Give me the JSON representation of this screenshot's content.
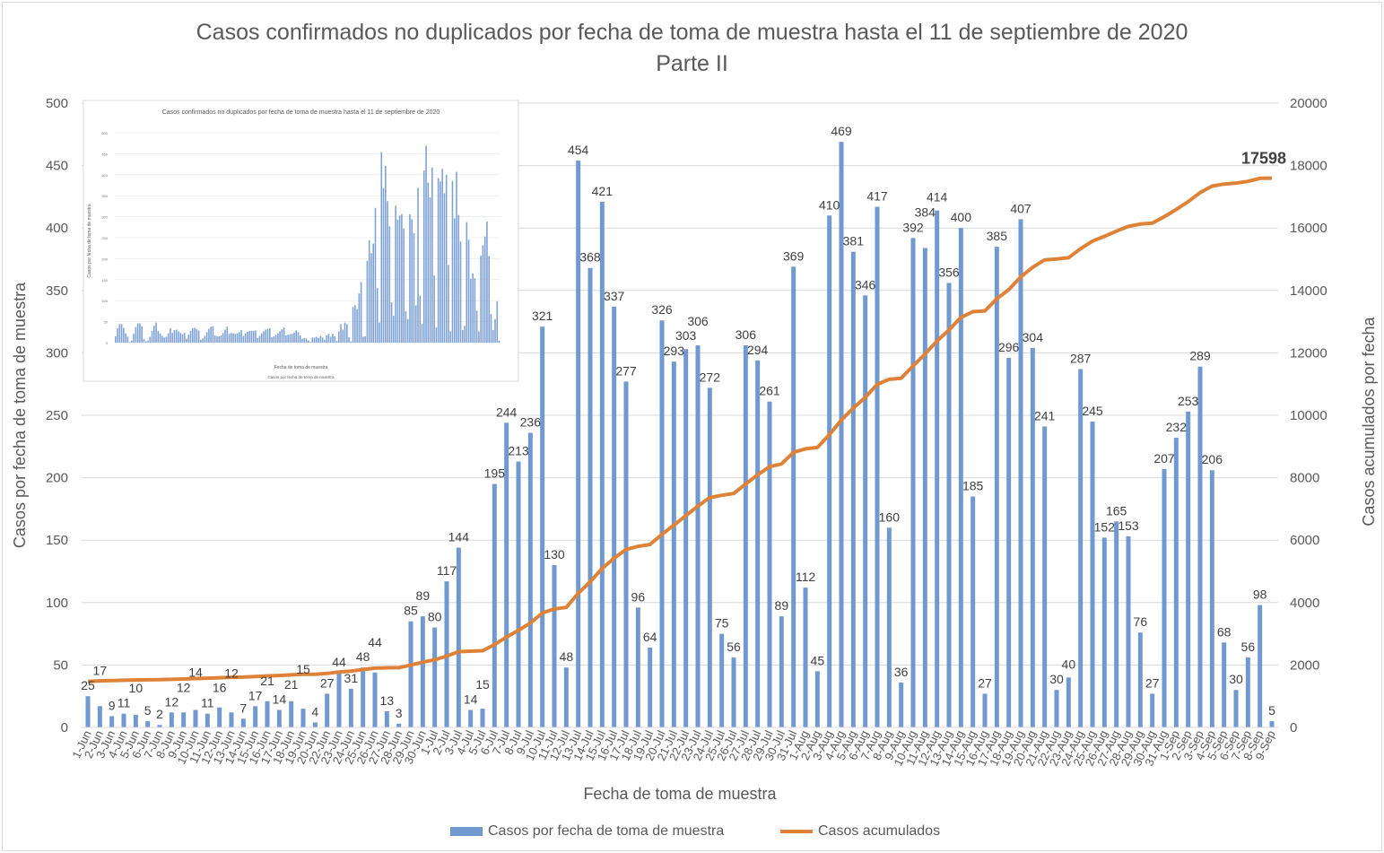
{
  "chart_data": {
    "type": "bar+line",
    "title": "Casos confirmados no duplicados por fecha de toma de muestra hasta el 11 de septiembre de 2020",
    "subtitle": "Parte II",
    "xlabel": "Fecha de toma de muestra",
    "ylabel": "Casos por fecha de toma de muestra",
    "y2label": "Casos acumulados por fecha",
    "ylim": [
      0,
      500
    ],
    "y2lim": [
      0,
      20000
    ],
    "yticks": [
      "0",
      "50",
      "100",
      "150",
      "200",
      "250",
      "300",
      "350",
      "400",
      "450",
      "500"
    ],
    "y2ticks": [
      "0",
      "2000",
      "4000",
      "6000",
      "8000",
      "10000",
      "12000",
      "14000",
      "16000",
      "18000",
      "20000"
    ],
    "grid": true,
    "legend_position": "bottom",
    "categories": [
      "1-Jun",
      "2-Jun",
      "3-Jun",
      "4-Jun",
      "5-Jun",
      "6-Jun",
      "7-Jun",
      "8-Jun",
      "9-Jun",
      "10-Jun",
      "11-Jun",
      "12-Jun",
      "13-Jun",
      "14-Jun",
      "15-Jun",
      "16-Jun",
      "17-Jun",
      "18-Jun",
      "19-Jun",
      "20-Jun",
      "22-Jun",
      "23-Jun",
      "24-Jun",
      "25-Jun",
      "26-Jun",
      "27-Jun",
      "28-Jun",
      "29-Jun",
      "30-Jun",
      "1-Jul",
      "2-Jul",
      "3-Jul",
      "4-Jul",
      "5-Jul",
      "6-Jul",
      "7-Jul",
      "8-Jul",
      "9-Jul",
      "10-Jul",
      "11-Jul",
      "12-Jul",
      "13-Jul",
      "14-Jul",
      "15-Jul",
      "16-Jul",
      "17-Jul",
      "18-Jul",
      "19-Jul",
      "20-Jul",
      "21-Jul",
      "22-Jul",
      "23-Jul",
      "24-Jul",
      "25-Jul",
      "26-Jul",
      "27-Jul",
      "28-Jul",
      "29-Jul",
      "30-Jul",
      "31-Jul",
      "1-Aug",
      "2-Aug",
      "3-Aug",
      "4-Aug",
      "5-Aug",
      "6-Aug",
      "7-Aug",
      "8-Aug",
      "9-Aug",
      "10-Aug",
      "11-Aug",
      "12-Aug",
      "13-Aug",
      "14-Aug",
      "15-Aug",
      "16-Aug",
      "17-Aug",
      "18-Aug",
      "19-Aug",
      "20-Aug",
      "21-Aug",
      "22-Aug",
      "23-Aug",
      "24-Aug",
      "25-Aug",
      "26-Aug",
      "27-Aug",
      "28-Aug",
      "29-Aug",
      "30-Aug",
      "31-Aug",
      "1-Sep",
      "2-Sep",
      "3-Sep",
      "4-Sep",
      "5-Sep",
      "6-Sep",
      "7-Sep",
      "8-Sep",
      "9-Sep"
    ],
    "series": [
      {
        "name": "Casos por fecha de toma de muestra",
        "type": "bar",
        "color": "#7199d1",
        "values": [
          25,
          17,
          9,
          11,
          10,
          5,
          2,
          12,
          12,
          14,
          11,
          16,
          12,
          7,
          17,
          21,
          14,
          21,
          15,
          4,
          27,
          44,
          31,
          48,
          44,
          13,
          3,
          85,
          89,
          80,
          117,
          144,
          14,
          15,
          195,
          244,
          213,
          236,
          321,
          130,
          48,
          454,
          368,
          421,
          337,
          277,
          96,
          64,
          326,
          293,
          303,
          306,
          272,
          75,
          56,
          306,
          294,
          261,
          89,
          369,
          112,
          45,
          410,
          469,
          381,
          346,
          417,
          160,
          36,
          392,
          384,
          414,
          356,
          400,
          185,
          27,
          385,
          296,
          407,
          304,
          241,
          30,
          40,
          287,
          245,
          152,
          165,
          153,
          76,
          27,
          207,
          232,
          253,
          289,
          206,
          68,
          30,
          56,
          98,
          5
        ]
      },
      {
        "name": "Casos acumulados",
        "type": "line",
        "color": "#de8237",
        "start_before_first": 1449,
        "final_label": "17598"
      }
    ]
  },
  "inset": {
    "title": "Casos confirmados no duplicados por fecha de toma de muestra hasta el 11 de septiembre de 2020",
    "ylabel": "Casos por fecha de toma de muestra",
    "xlabel": "Fecha de toma de muestra",
    "legend": "Casos por fecha de toma de muestra"
  }
}
